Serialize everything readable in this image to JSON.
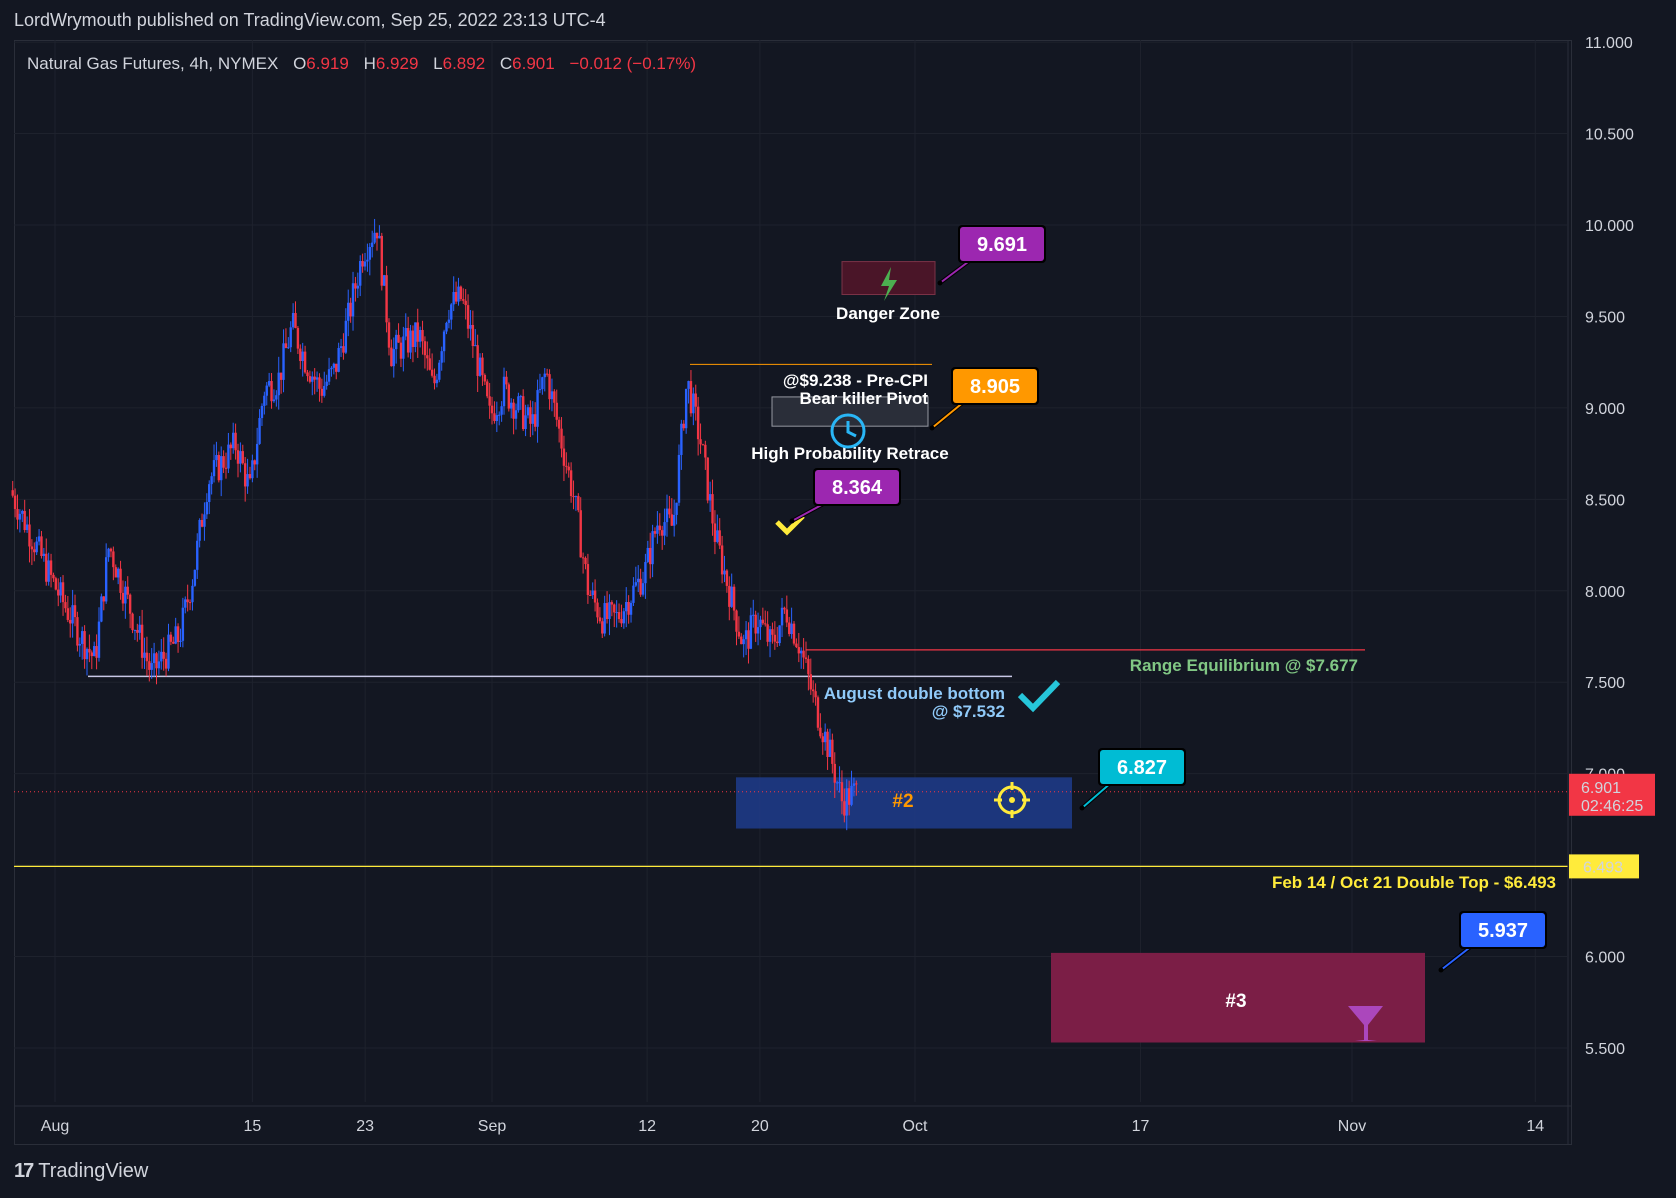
{
  "header": {
    "publish_line": "LordWrymouth published on TradingView.com, Sep 25, 2022 23:13 UTC-4",
    "symbol": "Natural Gas Futures, 4h, NYMEX",
    "ohlc": {
      "o_label": "O",
      "o": "6.919",
      "h_label": "H",
      "h": "6.929",
      "l_label": "L",
      "l": "6.892",
      "c_label": "C",
      "c": "6.901",
      "change": "−0.012 (−0.17%)"
    }
  },
  "footer": {
    "brand": "TradingView"
  },
  "colors": {
    "background": "#131722",
    "grid": "#1e222d",
    "up": "#2962ff",
    "down": "#f23645",
    "annotation_yellow": "#ffeb3b"
  },
  "chart_data": {
    "type": "candlestick",
    "symbol": "Natural Gas Futures",
    "interval": "4h",
    "ylim": [
      5.2,
      11.0
    ],
    "y_ticks": [
      "11.000",
      "10.500",
      "10.000",
      "9.500",
      "9.000",
      "8.500",
      "8.000",
      "7.500",
      "7.000",
      "6.500",
      "6.000",
      "5.500"
    ],
    "x_ticks": [
      "Aug",
      "15",
      "23",
      "Sep",
      "12",
      "20",
      "Oct",
      "17",
      "Nov",
      "14"
    ],
    "x_tick_dates": [
      "2022-08-01",
      "2022-08-15",
      "2022-08-23",
      "2022-09-01",
      "2022-09-12",
      "2022-09-20",
      "2022-10-01",
      "2022-10-17",
      "2022-11-01",
      "2022-11-14"
    ],
    "price_path": [
      [
        "2022-07-29",
        8.55
      ],
      [
        "2022-08-01",
        8.05
      ],
      [
        "2022-08-03",
        7.75
      ],
      [
        "2022-08-04",
        7.62
      ],
      [
        "2022-08-05",
        8.25
      ],
      [
        "2022-08-08",
        7.55
      ],
      [
        "2022-08-10",
        7.75
      ],
      [
        "2022-08-11",
        8.1
      ],
      [
        "2022-08-12",
        8.6
      ],
      [
        "2022-08-14",
        8.8
      ],
      [
        "2022-08-15",
        8.55
      ],
      [
        "2022-08-16",
        9.1
      ],
      [
        "2022-08-17",
        9.15
      ],
      [
        "2022-08-18",
        9.45
      ],
      [
        "2022-08-19",
        9.25
      ],
      [
        "2022-08-20",
        9.1
      ],
      [
        "2022-08-21",
        9.2
      ],
      [
        "2022-08-22",
        9.5
      ],
      [
        "2022-08-23",
        9.85
      ],
      [
        "2022-08-24",
        10.0
      ],
      [
        "2022-08-25",
        9.3
      ],
      [
        "2022-08-27",
        9.4
      ],
      [
        "2022-08-28",
        9.1
      ],
      [
        "2022-08-29",
        9.55
      ],
      [
        "2022-08-30",
        9.6
      ],
      [
        "2022-08-31",
        9.3
      ],
      [
        "2022-09-01",
        8.95
      ],
      [
        "2022-09-02",
        9.1
      ],
      [
        "2022-09-04",
        8.9
      ],
      [
        "2022-09-05",
        9.2
      ],
      [
        "2022-09-06",
        8.85
      ],
      [
        "2022-09-07",
        8.5
      ],
      [
        "2022-09-08",
        8.0
      ],
      [
        "2022-09-09",
        7.85
      ],
      [
        "2022-09-10",
        7.85
      ],
      [
        "2022-09-12",
        8.1
      ],
      [
        "2022-09-13",
        8.4
      ],
      [
        "2022-09-14",
        8.35
      ],
      [
        "2022-09-15",
        9.15
      ],
      [
        "2022-09-16",
        8.8
      ],
      [
        "2022-09-17",
        8.3
      ],
      [
        "2022-09-18",
        8.0
      ],
      [
        "2022-09-19",
        7.7
      ],
      [
        "2022-09-20",
        7.85
      ],
      [
        "2022-09-21",
        7.7
      ],
      [
        "2022-09-22",
        7.9
      ],
      [
        "2022-09-23",
        7.7
      ],
      [
        "2022-09-24",
        7.4
      ],
      [
        "2022-09-25",
        7.15
      ],
      [
        "2022-09-26",
        6.85
      ],
      [
        "2022-09-27",
        6.9
      ]
    ],
    "last_price": "6.901",
    "countdown": "02:46:25",
    "horizontal_levels": [
      {
        "label": "Range Equilibrium @ $7.677",
        "value": 7.677,
        "color": "#f23645"
      },
      {
        "label": "August double bottom",
        "sublabel": "@ $7.532",
        "value": 7.532,
        "color": "#c8c8e6"
      },
      {
        "label": "Feb 14 / Oct 21 Double Top - $6.493",
        "value": 6.493,
        "axis_label": "6.493",
        "color": "#ffeb3b"
      },
      {
        "label": "@$9.238 - Pre-CPI",
        "sublabel": "Bear killer Pivot",
        "value": 9.238,
        "color": "#ff9800"
      }
    ],
    "zones": [
      {
        "label": "Danger Zone",
        "y": [
          9.62,
          9.8
        ],
        "color": "#4a1528"
      },
      {
        "label": "High Probability Retrace",
        "y": [
          8.9,
          9.06
        ],
        "color": "#2a2e39"
      },
      {
        "label": "#2",
        "y": [
          6.7,
          6.98
        ],
        "color": "#1e3c8c"
      },
      {
        "label": "#3",
        "y": [
          5.53,
          6.02
        ],
        "color": "#7b1e46"
      }
    ],
    "callouts": [
      {
        "value": "9.691",
        "color": "#9c27b0"
      },
      {
        "value": "8.905",
        "color": "#ff9800"
      },
      {
        "value": "8.364",
        "color": "#9c27b0"
      },
      {
        "value": "6.827",
        "color": "#00bcd4"
      },
      {
        "value": "5.937",
        "color": "#2962ff"
      }
    ]
  }
}
